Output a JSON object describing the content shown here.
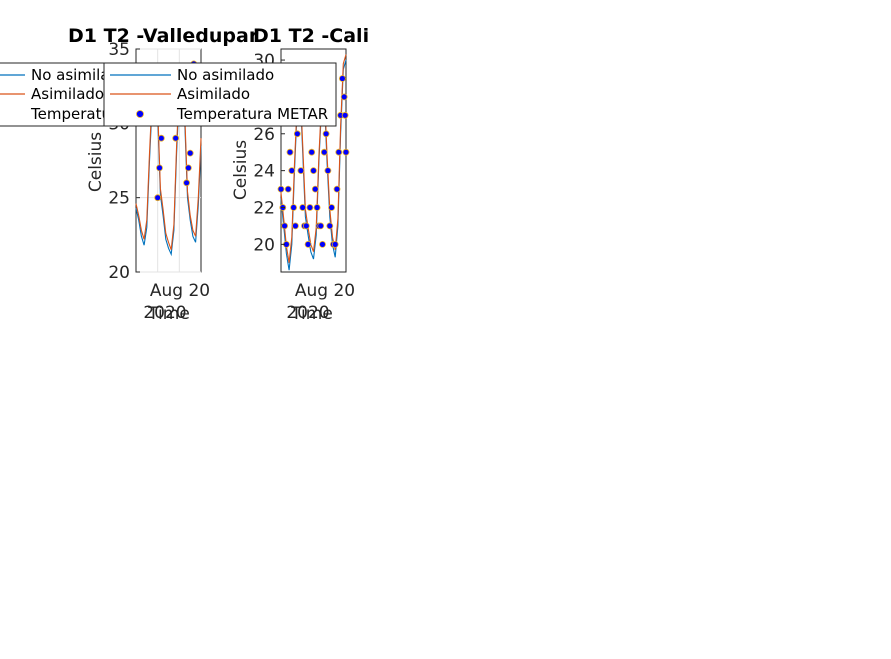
{
  "colors": {
    "no_asimilado": "#0072BD",
    "asimilado": "#D95319",
    "metar_face": "#0000FF",
    "metar_edge": "#EDB120"
  },
  "chart_data": [
    {
      "type": "line",
      "title": "D1 T2  -Valledupar",
      "xlabel": "Time",
      "ylabel": "Celsius",
      "ylim": [
        20,
        35
      ],
      "yticks": [
        "20",
        "25",
        "30",
        "35"
      ],
      "xtick_label": "Aug 20",
      "xtick_year": "2020",
      "grid": true,
      "legend": [
        "No asimilado",
        "Asimilado",
        "Temperatura METAR"
      ],
      "legend_position": "top-left",
      "x_hours": [
        0,
        3,
        6,
        9,
        12,
        15,
        18,
        21,
        24,
        27,
        30,
        33,
        36,
        39,
        42,
        45,
        48,
        51,
        54,
        57,
        60,
        63,
        66,
        69,
        72
      ],
      "series": [
        {
          "name": "No asimilado",
          "values": [
            24.3,
            23.5,
            22.4,
            21.8,
            23.0,
            27.5,
            31.5,
            33.5,
            30.5,
            25.2,
            23.8,
            22.2,
            21.6,
            21.2,
            22.8,
            28.0,
            32.0,
            33.5,
            30.0,
            25.0,
            23.5,
            22.4,
            22.0,
            24.5,
            28.5
          ]
        },
        {
          "name": "Asimilado",
          "values": [
            24.6,
            23.8,
            22.8,
            22.2,
            23.5,
            28.0,
            32.0,
            34.0,
            31.0,
            25.6,
            24.2,
            22.6,
            22.0,
            21.5,
            23.2,
            28.5,
            32.5,
            34.0,
            30.5,
            25.4,
            23.8,
            22.8,
            22.4,
            25.0,
            29.0
          ]
        }
      ],
      "metar": {
        "name": "Temperatura METAR",
        "x_hours": [
          24,
          26,
          28,
          30,
          44,
          46,
          48,
          56,
          58,
          60,
          62,
          64
        ],
        "values": [
          25,
          27,
          29,
          31,
          29,
          31,
          33,
          26,
          27,
          28,
          32,
          34
        ]
      }
    },
    {
      "type": "line",
      "title": "D1 T2  -Cali",
      "xlabel": "Time",
      "ylabel": "Celsius",
      "ylim": [
        18.5,
        30.6
      ],
      "yticks": [
        "20",
        "22",
        "24",
        "26",
        "28",
        "30"
      ],
      "xtick_label": "Aug 20",
      "xtick_year": "2020",
      "grid": false,
      "legend": [
        "No asimilado",
        "Asimilado",
        "Temperatura METAR"
      ],
      "legend_position": "top-left",
      "x_hours": [
        0,
        3,
        6,
        9,
        12,
        15,
        18,
        21,
        24,
        27,
        30,
        33,
        36,
        39,
        42,
        45,
        48,
        51,
        54,
        57,
        60,
        63,
        66,
        69,
        72
      ],
      "series": [
        {
          "name": "No asimilado",
          "values": [
            22.5,
            21.0,
            19.5,
            18.6,
            20.0,
            24.0,
            27.5,
            28.5,
            25.0,
            21.5,
            20.5,
            19.6,
            19.2,
            20.5,
            24.5,
            27.5,
            28.0,
            24.5,
            21.5,
            20.0,
            19.3,
            21.0,
            26.0,
            29.5,
            30.0
          ]
        },
        {
          "name": "Asimilado",
          "values": [
            22.8,
            21.4,
            19.9,
            19.0,
            20.4,
            24.4,
            27.8,
            28.8,
            25.4,
            21.9,
            20.9,
            20.0,
            19.6,
            20.9,
            24.8,
            27.8,
            28.4,
            24.9,
            21.9,
            20.4,
            19.7,
            21.4,
            26.4,
            29.8,
            30.3
          ]
        }
      ],
      "metar": {
        "name": "Temperatura METAR",
        "x_hours": [
          0,
          2,
          4,
          6,
          8,
          10,
          12,
          14,
          16,
          18,
          20,
          22,
          24,
          26,
          28,
          30,
          32,
          34,
          36,
          38,
          40,
          42,
          44,
          46,
          48,
          50,
          52,
          54,
          56,
          58,
          60,
          62,
          64,
          66,
          68,
          70,
          71,
          72
        ],
        "values": [
          23,
          22,
          21,
          20,
          23,
          25,
          24,
          22,
          21,
          26,
          28,
          24,
          22,
          21,
          21,
          20,
          22,
          25,
          24,
          23,
          22,
          21,
          21,
          20,
          25,
          26,
          24,
          21,
          22,
          20,
          20,
          23,
          25,
          27,
          29,
          28,
          27,
          25
        ]
      }
    }
  ]
}
